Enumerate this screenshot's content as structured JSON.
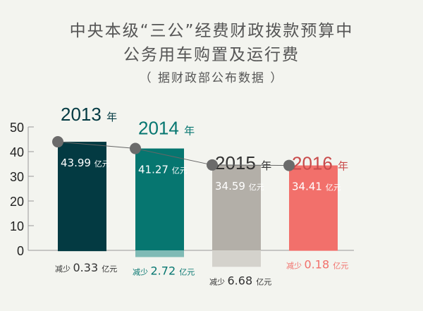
{
  "title": {
    "line1": "中央本级“三公”经费财政拨款预算中",
    "line2": "公务用车购置及运行费",
    "line3": "（ 据财政部公布数据 ）"
  },
  "chart_data": {
    "type": "bar",
    "categories": [
      "2013",
      "2014",
      "2015",
      "2016"
    ],
    "year_suffix": "年",
    "values": [
      43.99,
      41.27,
      34.59,
      34.41
    ],
    "value_labels": [
      "43.99",
      "41.27",
      "34.59",
      "34.41"
    ],
    "value_unit": "亿元",
    "decrease": [
      0.33,
      2.72,
      6.68,
      0.18
    ],
    "decrease_labels": [
      "0.33",
      "2.72",
      "6.68",
      "0.18"
    ],
    "decrease_prefix": "减少",
    "ylim": [
      0,
      50
    ],
    "yticks": [
      0,
      10,
      20,
      30,
      40,
      50
    ],
    "colors": [
      "#033a42",
      "#067670",
      "#b3afa8",
      "#f2706b"
    ],
    "decrease_colors": [
      "#033a42",
      "#7fbab5",
      "#d4d2cc",
      "#f2706b"
    ],
    "label_colors": [
      "#033a42",
      "#067670",
      "#333333",
      "#c94b4b"
    ],
    "decrease_text_colors": [
      "#333333",
      "#067670",
      "#333333",
      "#f2706b"
    ],
    "grid": false
  }
}
